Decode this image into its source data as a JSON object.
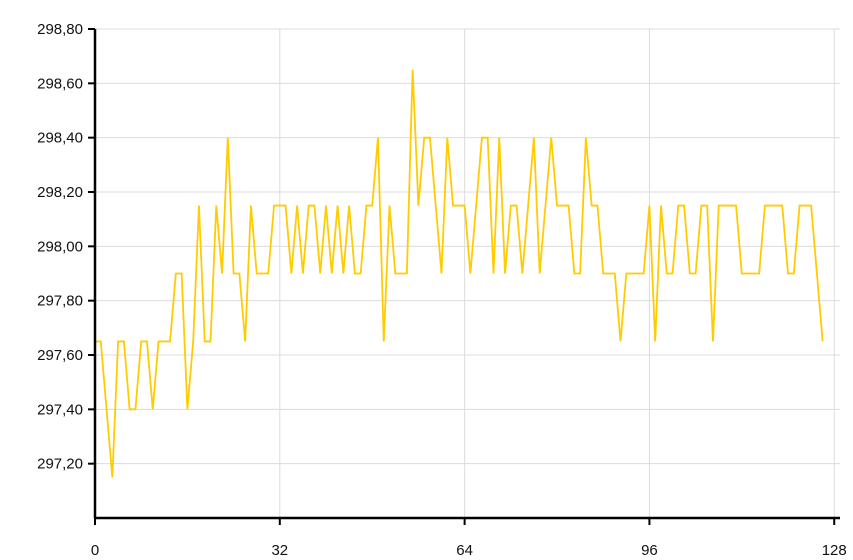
{
  "chart_data": {
    "type": "line",
    "title": "",
    "xlabel": "",
    "ylabel": "",
    "xlim": [
      0,
      129
    ],
    "ylim": [
      297.0,
      298.8
    ],
    "x_ticks": [
      0,
      32,
      64,
      96,
      128
    ],
    "x_tick_labels": [
      "0",
      "32",
      "64",
      "96",
      "128"
    ],
    "y_ticks": [
      297.2,
      297.4,
      297.6,
      297.8,
      298.0,
      298.2,
      298.4,
      298.6,
      298.8
    ],
    "y_tick_labels": [
      "297,20",
      "297,40",
      "297,60",
      "297,80",
      "298,00",
      "298,20",
      "298,40",
      "298,60",
      "298,80"
    ],
    "grid": true,
    "colors": {
      "line": "#ffcc00",
      "grid": "#dcdcdc",
      "axis": "#000000"
    },
    "series": [
      {
        "values": [
          297.65,
          297.65,
          297.4,
          297.15,
          297.65,
          297.65,
          297.4,
          297.4,
          297.65,
          297.65,
          297.4,
          297.65,
          297.65,
          297.65,
          297.9,
          297.9,
          297.4,
          297.65,
          298.15,
          297.65,
          297.65,
          298.15,
          297.9,
          298.4,
          297.9,
          297.9,
          297.65,
          298.15,
          297.9,
          297.9,
          297.9,
          298.15,
          298.15,
          298.15,
          297.9,
          298.15,
          297.9,
          298.15,
          298.15,
          297.9,
          298.15,
          297.9,
          298.15,
          297.9,
          298.15,
          297.9,
          297.9,
          298.15,
          298.15,
          298.4,
          297.65,
          298.15,
          297.9,
          297.9,
          297.9,
          298.65,
          298.15,
          298.4,
          298.4,
          298.15,
          297.9,
          298.4,
          298.15,
          298.15,
          298.15,
          297.9,
          298.15,
          298.4,
          298.4,
          297.9,
          298.4,
          297.9,
          298.15,
          298.15,
          297.9,
          298.15,
          298.4,
          297.9,
          298.15,
          298.4,
          298.15,
          298.15,
          298.15,
          297.9,
          297.9,
          298.4,
          298.15,
          298.15,
          297.9,
          297.9,
          297.9,
          297.65,
          297.9,
          297.9,
          297.9,
          297.9,
          298.15,
          297.65,
          298.15,
          297.9,
          297.9,
          298.15,
          298.15,
          297.9,
          297.9,
          298.15,
          298.15,
          297.65,
          298.15,
          298.15,
          298.15,
          298.15,
          297.9,
          297.9,
          297.9,
          297.9,
          298.15,
          298.15,
          298.15,
          298.15,
          297.9,
          297.9,
          298.15,
          298.15,
          298.15,
          297.9,
          297.65
        ]
      }
    ]
  }
}
